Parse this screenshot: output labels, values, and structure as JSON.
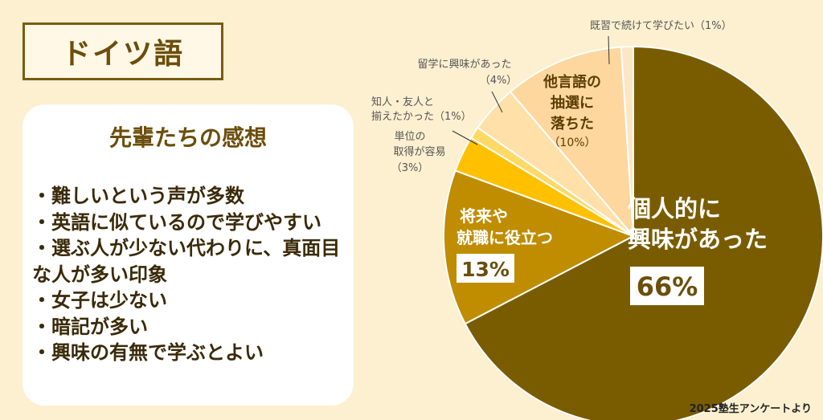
{
  "page": {
    "title": "ドイツ語",
    "panel": {
      "heading": "先輩たちの感想",
      "items": [
        "・難しいという声が多数",
        "・英語に似ているので学びやすい",
        "・選ぶ人が少ない代わりに、真面目な人が多い印象",
        "・女子は少ない",
        "・暗記が多い",
        "・興味の有無で学ぶとよい"
      ]
    },
    "source": "2025塾生アンケートより"
  },
  "chart_data": {
    "type": "pie",
    "start": "12 o'clock",
    "direction": "clockwise",
    "slices": [
      {
        "label": "個人的に興味があった",
        "value": 66,
        "value_label": "66%",
        "color": "#7a5c00"
      },
      {
        "label": "将来や就職に役立つ",
        "value": 13,
        "value_label": "13%",
        "color": "#c08c00"
      },
      {
        "label": "単位の取得が容易",
        "value": 3,
        "value_label": "（3%）",
        "color": "#ffc000"
      },
      {
        "label": "知人・友人と揃えたかった",
        "value": 1,
        "value_label": "（1%）",
        "color": "#ffd966"
      },
      {
        "label": "留学に興味があった",
        "value": 4,
        "value_label": "（4%）",
        "color": "#ffe0a8"
      },
      {
        "label": "他言語の抽選に落ちた",
        "value": 10,
        "value_label": "（10%）",
        "color": "#fdd79e"
      },
      {
        "label": "既習で続けて学びたい",
        "value": 1,
        "value_label": "（1%）",
        "color": "#fde6c6"
      }
    ]
  }
}
